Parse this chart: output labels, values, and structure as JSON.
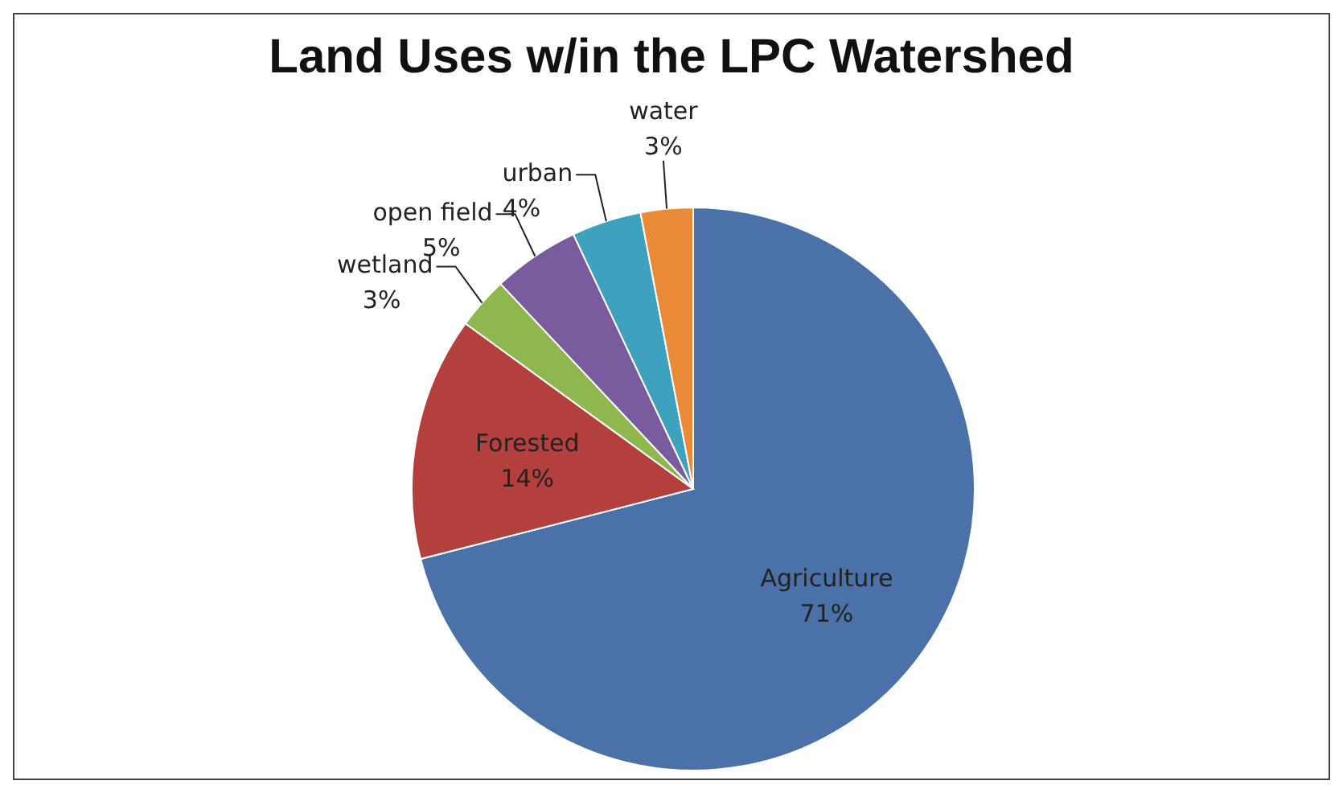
{
  "chart_data": {
    "type": "pie",
    "title": "Land Uses w/in the LPC Watershed",
    "categories": [
      "Agriculture",
      "Forested",
      "wetland",
      "open field",
      "urban",
      "water"
    ],
    "values": [
      71,
      14,
      3,
      5,
      4,
      3
    ],
    "value_labels": [
      "71%",
      "14%",
      "3%",
      "5%",
      "4%",
      "3%"
    ],
    "colors": [
      "#4a71a8",
      "#b3403d",
      "#8eb84e",
      "#7a5c9e",
      "#3ea2be",
      "#ea8a36"
    ]
  }
}
